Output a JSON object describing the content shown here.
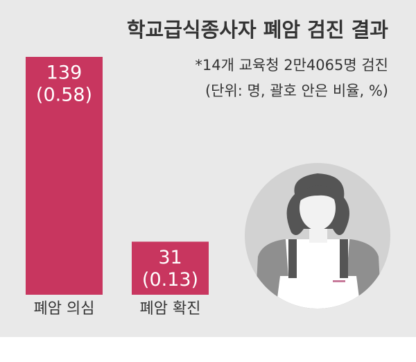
{
  "chart_data": {
    "type": "bar",
    "title": "학교급식종사자 폐암 검진 결과",
    "subtitle": "*14개 교육청 2만4065명 검진",
    "unit_note": "(단위: 명, 괄호 안은 비율, %)",
    "categories": [
      "폐암 의심",
      "폐암 확진"
    ],
    "values": [
      139,
      31
    ],
    "rates": [
      {
        "value": 0.58,
        "label": "(0.58)"
      },
      {
        "value": 0.13,
        "label": "(0.13)"
      }
    ],
    "color": "#c8365f"
  }
}
